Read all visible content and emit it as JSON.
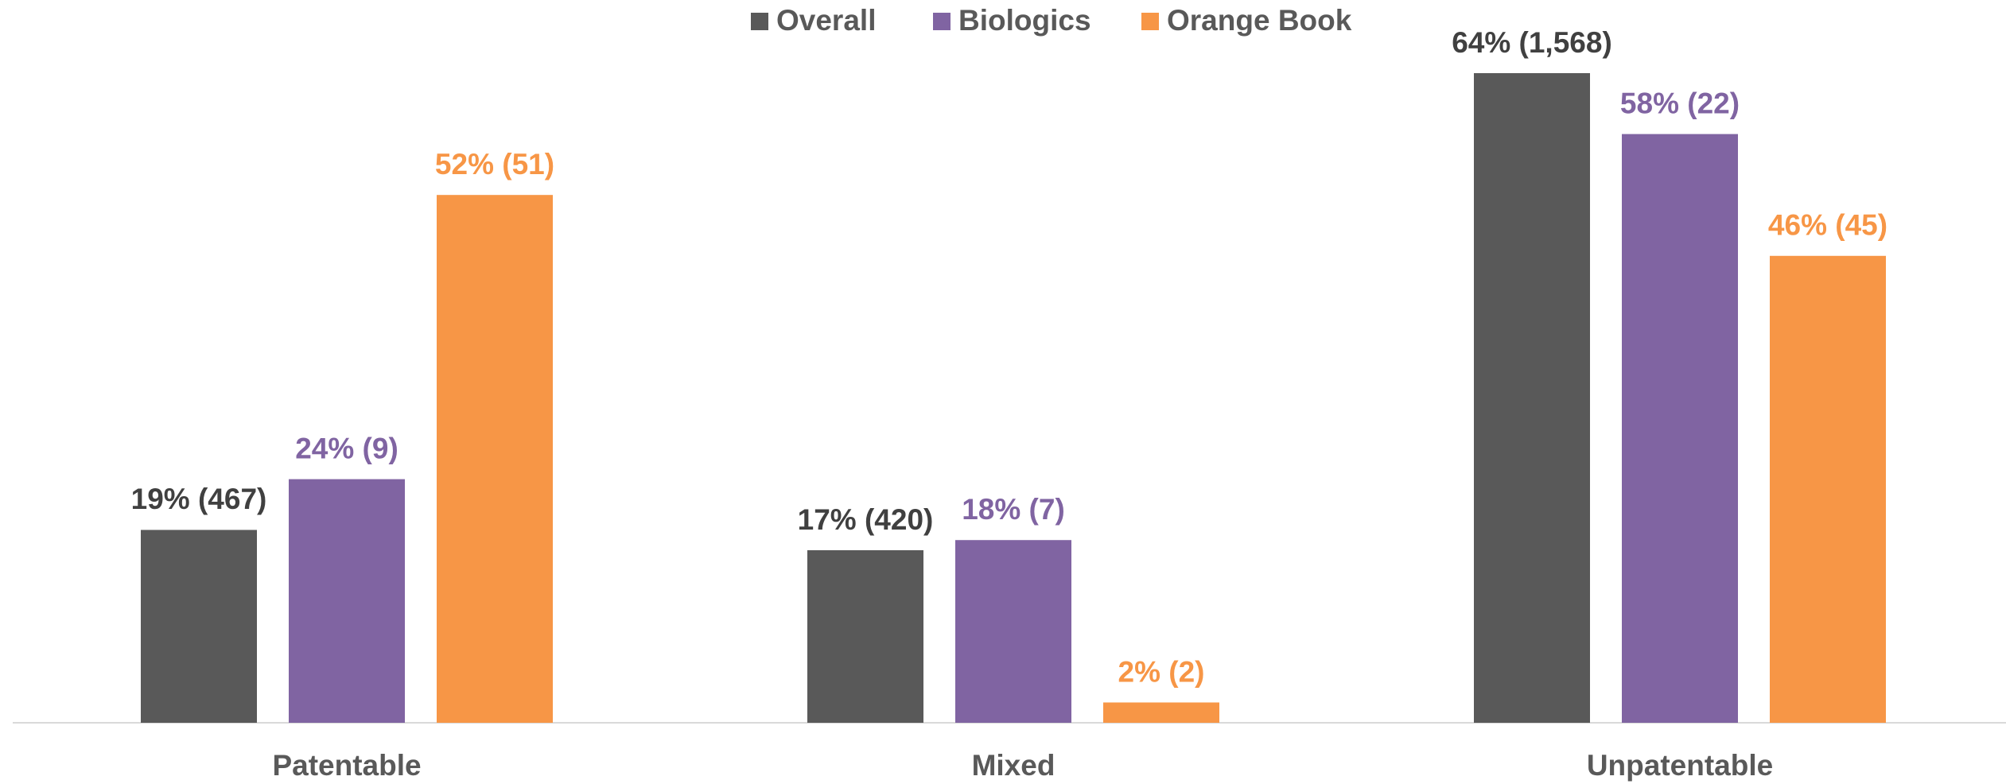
{
  "chart_data": {
    "type": "bar",
    "categories": [
      "Patentable",
      "Mixed",
      "Unpatentable"
    ],
    "series": [
      {
        "name": "Overall",
        "color": "#595959",
        "values": [
          19,
          17,
          64
        ],
        "value_labels": [
          "19% (467)",
          "17% (420)",
          "64% (1,568)"
        ]
      },
      {
        "name": "Biologics",
        "color": "#8064a2",
        "values": [
          24,
          18,
          58
        ],
        "value_labels": [
          "24% (9)",
          "18% (7)",
          "58% (22)"
        ]
      },
      {
        "name": "Orange Book",
        "color": "#f79646",
        "values": [
          52,
          2,
          46
        ],
        "value_labels": [
          "52% (51)",
          "2% (2)",
          "46% (45)"
        ]
      }
    ],
    "legend": "top"
  }
}
